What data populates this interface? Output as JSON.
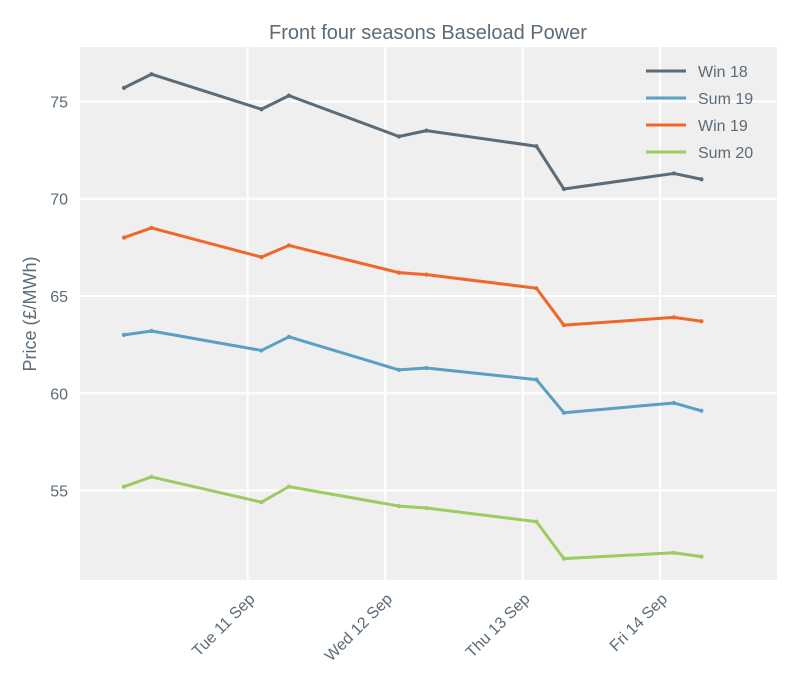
{
  "chart_data": {
    "type": "line",
    "title": "Front four seasons Baseload Power",
    "xlabel": "",
    "ylabel": "Price (£/MWh)",
    "ylim": [
      50.4,
      77.8
    ],
    "yticks": [
      55,
      60,
      65,
      70,
      75
    ],
    "x_date_ticks": [
      {
        "label": "Tue 11 Sep",
        "x": 11.0
      },
      {
        "label": "Wed 12 Sep",
        "x": 12.0
      },
      {
        "label": "Thu 13 Sep",
        "x": 13.0
      },
      {
        "label": "Fri 14 Sep",
        "x": 14.0
      }
    ],
    "xlim": [
      9.78,
      14.85
    ],
    "x": [
      10.1,
      10.3,
      11.1,
      11.3,
      12.1,
      12.3,
      13.1,
      13.3,
      14.1,
      14.3
    ],
    "series": [
      {
        "name": "Win 18",
        "color": "#5b6b77",
        "values": [
          75.7,
          76.4,
          74.6,
          75.3,
          73.2,
          73.5,
          72.7,
          70.5,
          71.3,
          71.0
        ]
      },
      {
        "name": "Sum 19",
        "color": "#5aa0c3",
        "values": [
          63.0,
          63.2,
          62.2,
          62.9,
          61.2,
          61.3,
          60.7,
          59.0,
          59.5,
          59.1
        ]
      },
      {
        "name": "Win 19",
        "color": "#f0672a",
        "values": [
          68.0,
          68.5,
          67.0,
          67.6,
          66.2,
          66.1,
          65.4,
          63.5,
          63.9,
          63.7
        ]
      },
      {
        "name": "Sum 20",
        "color": "#9ccb62",
        "values": [
          55.2,
          55.7,
          54.4,
          55.2,
          54.2,
          54.1,
          53.4,
          51.5,
          51.8,
          51.6
        ]
      }
    ],
    "legend_position": "top-right",
    "grid": true,
    "background": "#efefef"
  }
}
